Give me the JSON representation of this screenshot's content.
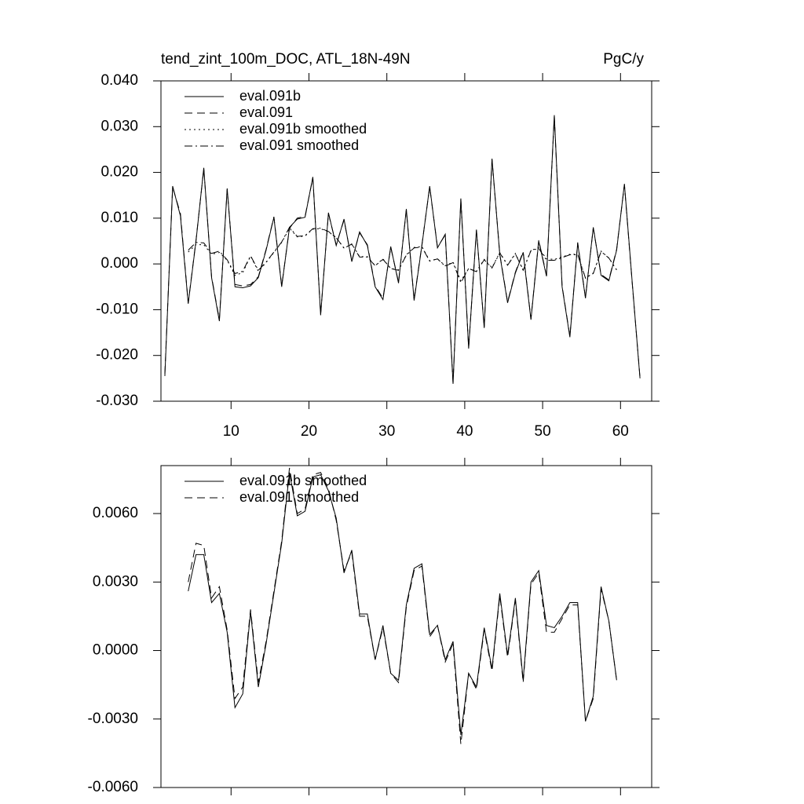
{
  "chart_data": [
    {
      "type": "line",
      "title": "tend_zint_100m_DOC, ATL_18N-49N",
      "units": "PgC/y",
      "xlim": [
        1,
        64
      ],
      "xticks": [
        10,
        20,
        30,
        40,
        50,
        60
      ],
      "show_xtick_labels": true,
      "ylim": [
        -0.03,
        0.04
      ],
      "yticks": [
        {
          "value": -0.03,
          "label": "-0.030"
        },
        {
          "value": -0.02,
          "label": "-0.020"
        },
        {
          "value": -0.01,
          "label": "-0.010"
        },
        {
          "value": 0,
          "label": "0.000"
        },
        {
          "value": 0.01,
          "label": "0.010"
        },
        {
          "value": 0.02,
          "label": "0.020"
        },
        {
          "value": 0.03,
          "label": "0.030"
        },
        {
          "value": 0.04,
          "label": "0.040"
        }
      ],
      "legend": "upper left",
      "series": [
        {
          "name": "eval.091b",
          "color": "#000000",
          "dash": "solid",
          "x": [
            1.5,
            2.5,
            3.5,
            4.5,
            5.5,
            6.5,
            7.5,
            8.5,
            9.5,
            10.5,
            11.5,
            12.5,
            13.5,
            14.5,
            15.5,
            16.5,
            17.5,
            18.5,
            19.5,
            20.5,
            21.5,
            22.5,
            23.5,
            24.5,
            25.5,
            26.5,
            27.5,
            28.5,
            29.5,
            30.5,
            31.5,
            32.5,
            33.5,
            34.5,
            35.5,
            36.5,
            37.5,
            38.5,
            39.5,
            40.5,
            41.5,
            42.5,
            43.5,
            44.5,
            45.5,
            46.5,
            47.5,
            48.5,
            49.5,
            50.5,
            51.5,
            52.5,
            53.5,
            54.5,
            55.5,
            56.5,
            57.5,
            58.5,
            59.5,
            60.5,
            61.5,
            62.5
          ],
          "values": [
            -0.0245,
            0.017,
            0.0105,
            -0.0087,
            0.005,
            0.021,
            -0.003,
            -0.0125,
            0.0165,
            -0.005,
            -0.0052,
            -0.0048,
            -0.003,
            0.003,
            0.0102,
            -0.005,
            0.008,
            0.0098,
            0.0102,
            0.019,
            -0.0112,
            0.0112,
            0.004,
            0.0098,
            0.0005,
            0.007,
            0.004,
            -0.005,
            -0.0078,
            0.0038,
            -0.0042,
            0.012,
            -0.008,
            0.004,
            0.017,
            0.0035,
            0.0065,
            -0.0262,
            0.0143,
            -0.0185,
            0.0075,
            -0.014,
            0.023,
            0.002,
            -0.0085,
            -0.002,
            0.0025,
            -0.0122,
            0.005,
            -0.0027,
            0.0325,
            -0.005,
            -0.016,
            0.0045,
            -0.0075,
            0.008,
            -0.0025,
            -0.0037,
            0.003,
            0.0175,
            -0.004,
            -0.025
          ]
        },
        {
          "name": "eval.091",
          "color": "#000000",
          "dash": "dash",
          "x": [
            1.5,
            2.5,
            3.5,
            4.5,
            5.5,
            6.5,
            7.5,
            8.5,
            9.5,
            10.5,
            11.5,
            12.5,
            13.5,
            14.5,
            15.5,
            16.5,
            17.5,
            18.5,
            19.5,
            20.5,
            21.5,
            22.5,
            23.5,
            24.5,
            25.5,
            26.5,
            27.5,
            28.5,
            29.5,
            30.5,
            31.5,
            32.5,
            33.5,
            34.5,
            35.5,
            36.5,
            37.5,
            38.5,
            39.5,
            40.5,
            41.5,
            42.5,
            43.5,
            44.5,
            45.5,
            46.5,
            47.5,
            48.5,
            49.5,
            50.5,
            51.5,
            52.5,
            53.5,
            54.5,
            55.5,
            56.5,
            57.5,
            58.5,
            59.5,
            60.5,
            61.5,
            62.5
          ],
          "values": [
            -0.024,
            0.0168,
            0.011,
            -0.0085,
            0.0052,
            0.0208,
            -0.0028,
            -0.0122,
            0.0163,
            -0.0045,
            -0.0048,
            -0.0045,
            -0.0028,
            0.0032,
            0.0103,
            -0.0048,
            0.0078,
            0.01,
            0.0104,
            0.0188,
            -0.011,
            0.011,
            0.0042,
            0.0096,
            0.0007,
            0.0068,
            0.0042,
            -0.0048,
            -0.0075,
            0.0036,
            -0.004,
            0.0118,
            -0.0078,
            0.0042,
            0.0168,
            0.0037,
            0.0063,
            -0.026,
            0.0141,
            -0.0183,
            0.0073,
            -0.0138,
            0.0228,
            0.0022,
            -0.0083,
            -0.0018,
            0.0027,
            -0.012,
            0.0052,
            -0.0025,
            0.0322,
            -0.0048,
            -0.0158,
            0.0047,
            -0.0073,
            0.0078,
            -0.0023,
            -0.0035,
            0.0032,
            0.0173,
            -0.0042,
            -0.0248
          ]
        },
        {
          "name": "eval.091b smoothed",
          "color": "#000000",
          "dash": "dot",
          "x": [
            4.5,
            5.5,
            6.5,
            7.5,
            8.5,
            9.5,
            10.5,
            11.5,
            12.5,
            13.5,
            14.5,
            15.5,
            16.5,
            17.5,
            18.5,
            19.5,
            20.5,
            21.5,
            22.5,
            23.5,
            24.5,
            25.5,
            26.5,
            27.5,
            28.5,
            29.5,
            30.5,
            31.5,
            32.5,
            33.5,
            34.5,
            35.5,
            36.5,
            37.5,
            38.5,
            39.5,
            40.5,
            41.5,
            42.5,
            43.5,
            44.5,
            45.5,
            46.5,
            47.5,
            48.5,
            49.5,
            50.5,
            51.5,
            52.5,
            53.5,
            54.5,
            55.5,
            56.5,
            57.5,
            58.5,
            59.5
          ],
          "values": [
            0.0026,
            0.0042,
            0.0042,
            0.0021,
            0.0025,
            0.0008,
            -0.0025,
            -0.0019,
            0.0017,
            -0.0016,
            0.0003,
            0.0025,
            0.0047,
            0.0078,
            0.0059,
            0.0061,
            0.0076,
            0.0077,
            0.007,
            0.0058,
            0.0034,
            0.0044,
            0.0016,
            0.0016,
            -0.0004,
            0.0011,
            -0.001,
            -0.0013,
            0.002,
            0.0036,
            0.0038,
            0.0007,
            0.0011,
            -0.0004,
            0.0004,
            -0.0037,
            -0.001,
            -0.0016,
            0.001,
            -0.0008,
            0.0025,
            -0.0002,
            0.0023,
            -0.0013,
            0.003,
            0.0035,
            0.0011,
            0.001,
            0.0015,
            0.0021,
            0.0021,
            -0.0031,
            -0.002,
            0.0028,
            0.0013,
            -0.0013
          ]
        },
        {
          "name": "eval.091 smoothed",
          "color": "#000000",
          "dash": "dashdot",
          "x": [
            4.5,
            5.5,
            6.5,
            7.5,
            8.5,
            9.5,
            10.5,
            11.5,
            12.5,
            13.5,
            14.5,
            15.5,
            16.5,
            17.5,
            18.5,
            19.5,
            20.5,
            21.5,
            22.5,
            23.5,
            24.5,
            25.5,
            26.5,
            27.5,
            28.5,
            29.5,
            30.5,
            31.5,
            32.5,
            33.5,
            34.5,
            35.5,
            36.5,
            37.5,
            38.5,
            39.5,
            40.5,
            41.5,
            42.5,
            43.5,
            44.5,
            45.5,
            46.5,
            47.5,
            48.5,
            49.5,
            50.5,
            51.5,
            52.5,
            53.5,
            54.5,
            55.5,
            56.5,
            57.5,
            58.5,
            59.5
          ],
          "values": [
            0.003,
            0.0047,
            0.0046,
            0.0023,
            0.0028,
            0.0009,
            -0.0021,
            -0.0016,
            0.0018,
            -0.0014,
            0.0004,
            0.0026,
            0.0048,
            0.008,
            0.006,
            0.0062,
            0.0077,
            0.0078,
            0.0071,
            0.0057,
            0.0035,
            0.0043,
            0.0015,
            0.0015,
            -0.0004,
            0.001,
            -0.001,
            -0.0014,
            0.0019,
            0.0035,
            0.0037,
            0.0006,
            0.0011,
            -0.0005,
            0.0003,
            -0.0041,
            -0.001,
            -0.0017,
            0.0009,
            -0.0009,
            0.0024,
            -0.0003,
            0.0022,
            -0.0014,
            0.0029,
            0.0034,
            0.0008,
            0.0008,
            0.0014,
            0.002,
            0.002,
            -0.0031,
            -0.0021,
            0.0027,
            0.0013,
            -0.0013
          ]
        }
      ]
    },
    {
      "type": "line",
      "xlim": [
        1,
        64
      ],
      "xticks": [
        10,
        20,
        30,
        40,
        50,
        60
      ],
      "show_xtick_labels": false,
      "ylim": [
        -0.006,
        0.0081
      ],
      "yticks": [
        {
          "value": -0.006,
          "label": "-0.0060"
        },
        {
          "value": -0.003,
          "label": "-0.0030"
        },
        {
          "value": 0,
          "label": "0.0000"
        },
        {
          "value": 0.003,
          "label": "0.0030"
        },
        {
          "value": 0.006,
          "label": "0.0060"
        }
      ],
      "legend": "upper left",
      "series": [
        {
          "name": "eval.091b smoothed",
          "color": "#000000",
          "dash": "solid",
          "x": [
            4.5,
            5.5,
            6.5,
            7.5,
            8.5,
            9.5,
            10.5,
            11.5,
            12.5,
            13.5,
            14.5,
            15.5,
            16.5,
            17.5,
            18.5,
            19.5,
            20.5,
            21.5,
            22.5,
            23.5,
            24.5,
            25.5,
            26.5,
            27.5,
            28.5,
            29.5,
            30.5,
            31.5,
            32.5,
            33.5,
            34.5,
            35.5,
            36.5,
            37.5,
            38.5,
            39.5,
            40.5,
            41.5,
            42.5,
            43.5,
            44.5,
            45.5,
            46.5,
            47.5,
            48.5,
            49.5,
            50.5,
            51.5,
            52.5,
            53.5,
            54.5,
            55.5,
            56.5,
            57.5,
            58.5,
            59.5
          ],
          "values": [
            0.0026,
            0.0042,
            0.0042,
            0.0021,
            0.0025,
            0.0008,
            -0.0025,
            -0.0019,
            0.0017,
            -0.0016,
            0.0003,
            0.0025,
            0.0047,
            0.0078,
            0.0059,
            0.0061,
            0.0076,
            0.0077,
            0.007,
            0.0058,
            0.0034,
            0.0044,
            0.0016,
            0.0016,
            -0.0004,
            0.0011,
            -0.001,
            -0.0013,
            0.002,
            0.0036,
            0.0038,
            0.0007,
            0.0011,
            -0.0004,
            0.0004,
            -0.0037,
            -0.001,
            -0.0016,
            0.001,
            -0.0008,
            0.0025,
            -0.0002,
            0.0023,
            -0.0013,
            0.003,
            0.0035,
            0.0011,
            0.001,
            0.0015,
            0.0021,
            0.0021,
            -0.0031,
            -0.002,
            0.0028,
            0.0013,
            -0.0013
          ]
        },
        {
          "name": "eval.091 smoothed",
          "color": "#000000",
          "dash": "dash",
          "x": [
            4.5,
            5.5,
            6.5,
            7.5,
            8.5,
            9.5,
            10.5,
            11.5,
            12.5,
            13.5,
            14.5,
            15.5,
            16.5,
            17.5,
            18.5,
            19.5,
            20.5,
            21.5,
            22.5,
            23.5,
            24.5,
            25.5,
            26.5,
            27.5,
            28.5,
            29.5,
            30.5,
            31.5,
            32.5,
            33.5,
            34.5,
            35.5,
            36.5,
            37.5,
            38.5,
            39.5,
            40.5,
            41.5,
            42.5,
            43.5,
            44.5,
            45.5,
            46.5,
            47.5,
            48.5,
            49.5,
            50.5,
            51.5,
            52.5,
            53.5,
            54.5,
            55.5,
            56.5,
            57.5,
            58.5,
            59.5
          ],
          "values": [
            0.003,
            0.0047,
            0.0046,
            0.0023,
            0.0028,
            0.0009,
            -0.0021,
            -0.0016,
            0.0018,
            -0.0014,
            0.0004,
            0.0026,
            0.0048,
            0.008,
            0.006,
            0.0062,
            0.0077,
            0.0078,
            0.0071,
            0.0057,
            0.0035,
            0.0043,
            0.0015,
            0.0015,
            -0.0004,
            0.001,
            -0.001,
            -0.0014,
            0.0019,
            0.0035,
            0.0037,
            0.0006,
            0.0011,
            -0.0005,
            0.0003,
            -0.0041,
            -0.001,
            -0.0017,
            0.0009,
            -0.0009,
            0.0024,
            -0.0003,
            0.0022,
            -0.0014,
            0.0029,
            0.0034,
            0.0008,
            0.0008,
            0.0014,
            0.002,
            0.002,
            -0.0031,
            -0.0021,
            0.0027,
            0.0013,
            -0.0013
          ]
        }
      ]
    }
  ]
}
